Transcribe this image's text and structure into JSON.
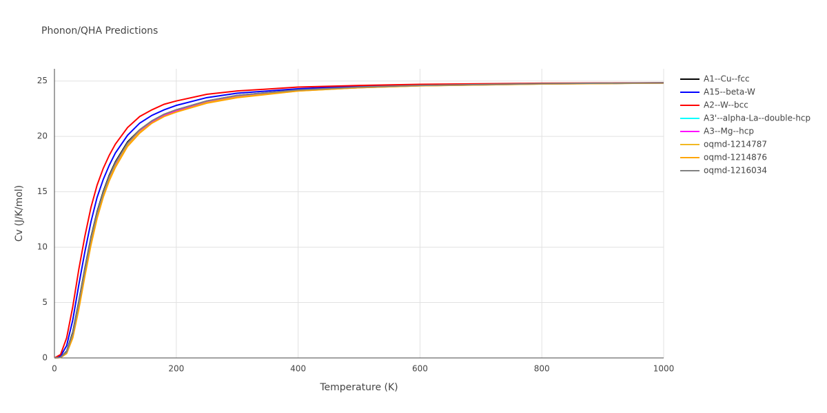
{
  "chart_data": {
    "type": "line",
    "title": "Phonon/QHA Predictions",
    "x_label": "Temperature (K)",
    "y_label": "Cv (J/K/mol)",
    "x": [
      0,
      10,
      20,
      30,
      40,
      50,
      60,
      70,
      80,
      90,
      100,
      120,
      140,
      160,
      180,
      200,
      250,
      300,
      400,
      500,
      600,
      800,
      1000
    ],
    "series": [
      {
        "name": "A1--Cu--fcc",
        "color": "#000000",
        "values": [
          0,
          0.05,
          0.6,
          2.3,
          5.1,
          8.1,
          10.9,
          13.2,
          15.0,
          16.5,
          17.7,
          19.5,
          20.6,
          21.4,
          22.0,
          22.4,
          23.2,
          23.7,
          24.2,
          24.45,
          24.6,
          24.75,
          24.82
        ]
      },
      {
        "name": "A15--beta-W",
        "color": "#0000ff",
        "values": [
          0,
          0.15,
          1.1,
          3.4,
          6.6,
          9.6,
          12.3,
          14.5,
          16.1,
          17.4,
          18.5,
          20.1,
          21.2,
          21.9,
          22.4,
          22.8,
          23.5,
          23.9,
          24.3,
          24.55,
          24.65,
          24.78,
          24.83
        ]
      },
      {
        "name": "A2--W--bcc",
        "color": "#ff0000",
        "values": [
          0,
          0.3,
          1.8,
          4.6,
          8.0,
          11.0,
          13.6,
          15.6,
          17.1,
          18.3,
          19.3,
          20.8,
          21.8,
          22.4,
          22.9,
          23.2,
          23.8,
          24.1,
          24.45,
          24.6,
          24.7,
          24.8,
          24.85
        ]
      },
      {
        "name": "A3'--alpha-La--double-hcp",
        "color": "#00ffff",
        "values": [
          0,
          0.04,
          0.55,
          2.1,
          4.8,
          7.8,
          10.6,
          12.9,
          14.8,
          16.3,
          17.5,
          19.4,
          20.5,
          21.3,
          21.9,
          22.3,
          23.1,
          23.65,
          24.15,
          24.42,
          24.58,
          24.74,
          24.82
        ]
      },
      {
        "name": "A3--Mg--hcp",
        "color": "#ff00ff",
        "values": [
          0,
          0.04,
          0.5,
          2.0,
          4.7,
          7.7,
          10.5,
          12.8,
          14.7,
          16.2,
          17.4,
          19.3,
          20.5,
          21.3,
          21.9,
          22.3,
          23.1,
          23.6,
          24.15,
          24.4,
          24.58,
          24.74,
          24.82
        ]
      },
      {
        "name": "oqmd-1214787",
        "color": "#f2b822",
        "values": [
          0,
          0.04,
          0.45,
          1.9,
          4.5,
          7.5,
          10.3,
          12.7,
          14.6,
          16.1,
          17.3,
          19.2,
          20.4,
          21.2,
          21.8,
          22.2,
          23.05,
          23.55,
          24.1,
          24.4,
          24.57,
          24.73,
          24.82
        ]
      },
      {
        "name": "oqmd-1214876",
        "color": "#ffa500",
        "values": [
          0,
          0.03,
          0.4,
          1.8,
          4.4,
          7.4,
          10.2,
          12.6,
          14.5,
          16.0,
          17.2,
          19.1,
          20.3,
          21.2,
          21.8,
          22.2,
          23.0,
          23.5,
          24.1,
          24.4,
          24.57,
          24.73,
          24.82
        ]
      },
      {
        "name": "oqmd-1216034",
        "color": "#808080",
        "values": [
          0,
          0.05,
          0.55,
          2.2,
          5.0,
          8.0,
          10.8,
          13.1,
          14.9,
          16.4,
          17.6,
          19.4,
          20.6,
          21.4,
          22.0,
          22.4,
          23.2,
          23.7,
          24.2,
          24.45,
          24.6,
          24.76,
          24.84
        ]
      }
    ],
    "xlim": [
      0,
      1000
    ],
    "xticks": [
      0,
      200,
      400,
      600,
      800,
      1000
    ],
    "ylim": [
      0,
      26.1
    ],
    "yticks": [
      0,
      5,
      10,
      15,
      20,
      25
    ],
    "grid": true
  }
}
